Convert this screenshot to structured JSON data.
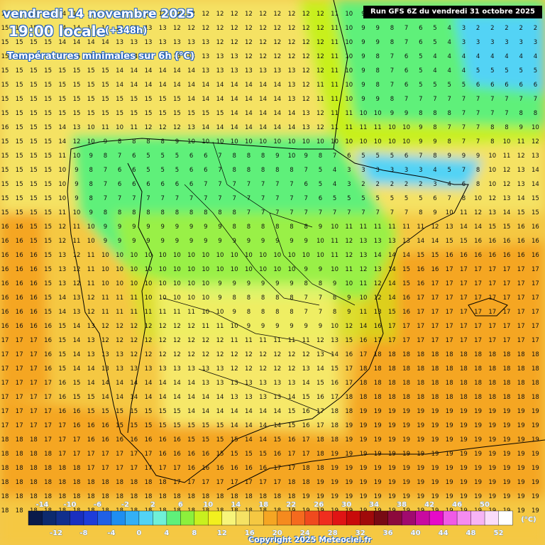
{
  "header": {
    "date": "vendredi 14 novembre 2025",
    "time": "19:00 locale",
    "offset": "(+348h)",
    "subtitle": "Températures minimales sur 6h (°C)",
    "run_info": "Run GFS 6Z du vendredi 31 octobre 2025"
  },
  "legend": {
    "unit": "(°C)",
    "top_labels": [
      "-14",
      "-10",
      "-6",
      "-2",
      "2",
      "6",
      "10",
      "14",
      "18",
      "22",
      "26",
      "30",
      "34",
      "38",
      "42",
      "46",
      "50"
    ],
    "bottom_labels": [
      "-12",
      "-8",
      "-4",
      "0",
      "4",
      "8",
      "12",
      "16",
      "20",
      "24",
      "28",
      "32",
      "36",
      "40",
      "44",
      "48",
      "52"
    ],
    "colors": [
      "#0a1a4a",
      "#0d2a6e",
      "#112f8c",
      "#1a2fbf",
      "#1e3dd9",
      "#2060e6",
      "#1e8ef0",
      "#33b0f5",
      "#52d3f5",
      "#6ff0d8",
      "#5ff07a",
      "#8cf03c",
      "#c8f01e",
      "#f2f01e",
      "#f7f57a",
      "#f5e264",
      "#f5c842",
      "#f5a623",
      "#f58a1e",
      "#f56a1e",
      "#f04a1e",
      "#f02e1e",
      "#e01414",
      "#c80a0a",
      "#a00a0a",
      "#780a14",
      "#8c0a3c",
      "#a00a6e",
      "#c80aa0",
      "#e60ac8",
      "#f05ae6",
      "#f58cf0",
      "#f7b4f5",
      "#fadcfa",
      "#ffffff"
    ]
  },
  "copyright": "Copyright 2025 Meteociel.fr",
  "map": {
    "region": "Péninsule ibérique",
    "colors": {
      "land_base": "#f2c94c",
      "warm_orange": "#f5a623",
      "mild_yellow": "#f5e264",
      "pale_yellow": "#f7f57a",
      "lime": "#c8f01e",
      "green": "#5ff07a",
      "cyan": "#52d3f5",
      "blue": "#1e8ef0",
      "border": "#000000",
      "number": "#111111"
    },
    "grid_rows": [
      "15 15 15 15 14 14 14 14 13 13 13 12 12 12 12 12 12 12 12 12 12 12 12 11 10 9 8 7 6 5 4 3 2 2 1 1 1 1",
      "15 15 15 15 14 14 14 14 13 13 13 13 12 12 12 12 12 12 12 12 12 12 12 11 10 9 9 8 7 6 5 4 3 2 2 2 2 2",
      "15 15 15 15 14 14 14 14 13 13 13 13 13 13 13 12 12 12 12 12 12 12 12 11 10 9 9 8 7 6 5 4 3 3 3 3 3 3",
      "15 15 15 15 15 15 15 15 14 14 13 13 13 13 13 13 13 12 12 12 12 12 12 11 10 9 8 7 6 5 4 4 4 4 4 4 4 4",
      "15 15 15 15 15 15 15 15 14 14 14 14 14 14 13 13 13 13 13 13 13 12 12 11 10 9 8 7 6 5 4 4 4 5 5 5 5 5",
      "15 15 15 15 15 15 15 15 14 14 14 14 14 14 14 14 14 14 14 14 13 12 11 11 10 9 8 7 6 5 5 5 5 6 6 6 6 6",
      "15 15 15 15 15 15 15 15 15 15 15 15 15 14 14 14 14 14 14 14 13 12 11 11 10 9 9 8 7 7 7 7 7 7 7 7 7 7",
      "15 15 15 15 15 15 15 15 15 15 15 15 15 15 15 15 14 14 14 14 14 13 12 11 11 10 10 9 9 8 8 8 7 7 7 7 8 8",
      "16 15 15 15 14 13 10 11 10 11 12 12 12 13 14 14 14 14 14 14 14 13 12 11 11 11 11 10 10 9 8 7 7 7 8 8 9 10",
      "15 15 15 15 14 12 10 9 8 8 8 8 9 10 10 10 10 10 10 10 10 10 10 10 10 10 10 10 10 9 9 8 7 7 8 10 11 12",
      "15 15 15 15 11 10 9 8 7 6 5 5 5 6 6 7 8 8 8 9 10 9 8 7 6 5 5 5 6 7 8 9 9 9 10 11 12 13",
      "15 15 15 15 10 9 8 7 6 6 5 5 5 6 6 7 8 8 8 8 8 7 5 4 3 3 3 3 3 3 4 5 7 8 10 12 13 14",
      "15 15 15 15 10 9 8 7 6 6 6 6 6 6 7 7 7 7 7 7 7 6 5 4 3 2 2 2 2 2 3 4 6 8 10 12 13 14",
      "15 15 15 15 10 9 8 7 7 7 7 7 7 7 7 7 7 7 7 7 7 7 6 5 5 5 5 5 5 5 6 7 8 10 12 13 14 15",
      "15 15 15 15 11 10 9 8 8 8 8 8 8 8 8 8 8 7 7 7 7 7 7 7 7 7 7 7 7 8 9 10 11 12 13 14 15 15",
      "16 16 15 15 12 11 10 9 9 9 9 9 9 9 9 9 8 8 8 8 8 8 9 10 11 11 11 11 11 11 12 13 14 14 15 15 16 16",
      "16 16 15 15 12 11 10 9 9 9 9 9 9 9 9 9 9 9 9 9 9 9 10 11 12 13 13 13 13 14 14 15 15 16 16 16 16 16",
      "16 16 16 15 13 12 11 10 10 10 10 10 10 10 10 10 10 10 10 10 10 10 10 11 12 13 14 14 14 15 15 16 16 16 16 16 16 16",
      "16 16 16 15 13 12 11 10 10 10 10 10 10 10 10 10 10 10 10 10 10 9 9 10 11 12 13 14 15 16 16 17 17 17 17 17 17 17",
      "16 16 16 15 13 12 11 10 10 10 10 10 10 10 10 9 9 9 9 9 9 8 8 9 10 11 12 14 15 16 17 17 17 17 17 17 17 17",
      "16 16 16 15 14 13 12 11 11 11 10 10 10 10 10 9 8 8 8 8 8 7 7 8 9 10 12 14 16 17 17 17 17 17 17 17 17 17",
      "16 16 16 15 14 13 12 11 11 11 11 11 11 11 10 10 9 8 8 8 8 7 7 8 9 11 13 15 16 17 17 17 17 17 17 17 17 17",
      "16 16 16 16 15 14 13 12 12 12 12 12 12 12 11 11 10 9 9 9 9 9 9 10 12 14 16 17 17 17 17 17 17 17 17 17 17 17",
      "17 17 17 16 15 14 13 12 12 12 12 12 12 12 12 12 11 11 11 11 11 11 12 13 15 16 17 17 17 17 17 17 17 17 17 17 17 17",
      "17 17 17 16 15 14 13 13 13 12 12 12 12 12 12 12 12 12 12 12 12 12 13 14 16 17 18 18 18 18 18 18 18 18 18 18 18 18",
      "17 17 17 16 15 14 14 13 13 13 13 13 13 13 13 13 12 12 12 12 12 13 14 15 17 18 18 18 18 18 18 18 18 18 18 18 18 18",
      "17 17 17 17 16 15 14 14 14 14 14 14 14 14 13 13 13 13 13 13 13 14 15 16 17 18 18 18 18 18 18 18 18 18 18 18 18 18",
      "17 17 17 17 16 15 15 14 14 14 14 14 14 14 14 14 13 13 13 13 14 15 16 17 18 18 18 18 18 18 18 18 18 18 18 18 18 18",
      "17 17 17 17 16 16 15 15 15 15 15 15 15 14 14 14 14 14 14 14 15 16 17 18 18 19 19 19 19 19 19 19 19 19 19 19 19 19",
      "17 17 17 17 17 16 16 16 15 15 15 15 15 15 15 15 14 14 14 14 15 16 17 18 19 19 19 19 19 19 19 19 19 19 19 19 19 19",
      "18 18 18 17 17 17 16 16 16 16 16 16 16 15 15 15 15 14 14 15 16 17 18 18 19 19 19 19 19 19 19 19 19 19 19 19 19 19",
      "18 18 18 18 17 17 17 17 17 17 17 16 16 16 16 15 15 15 15 16 17 17 18 19 19 19 19 19 19 19 19 19 19 19 19 19 19 19",
      "18 18 18 18 18 18 17 17 17 17 17 17 17 16 16 16 16 16 16 17 17 18 18 19 19 19 19 19 19 19 19 19 19 19 19 19 19 19",
      "18 18 18 18 18 18 18 18 18 18 18 18 17 17 17 17 17 17 17 17 18 18 19 19 19 19 19 19 19 19 19 19 19 19 19 19 19 19",
      "18 18 18 18 18 18 18 18 18 18 18 18 18 18 18 18 18 18 18 18 18 19 19 19 19 19 19 19 19 19 19 19 19 19 19 19 19 19",
      "18 18 18 18 18 18 18 18 18 18 18 18 18 18 18 18 18 18 18 18 19 19 19 19 19 19 19 19 19 19 19 19 19 19 19 19 19 19"
    ]
  }
}
